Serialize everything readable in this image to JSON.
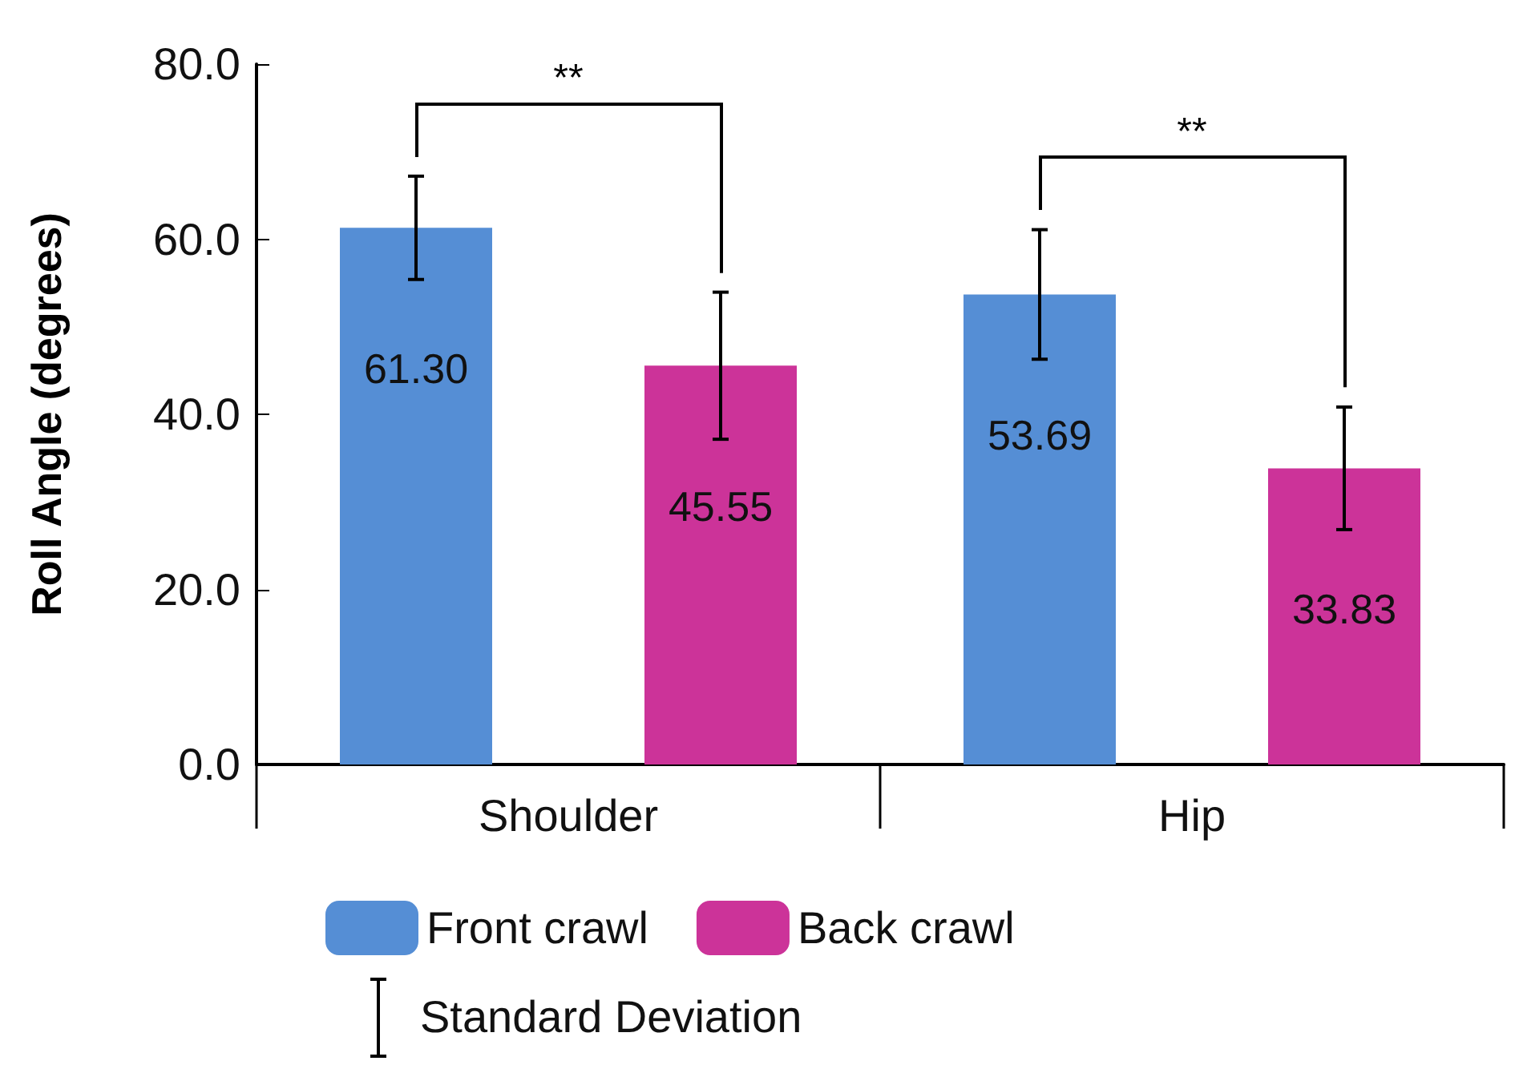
{
  "chart_data": {
    "type": "bar",
    "ylabel": "Roll Angle (degrees)",
    "categories": [
      "Shoulder",
      "Hip"
    ],
    "series": [
      {
        "name": "Front crawl",
        "color": "#558ed5",
        "values": [
          61.3,
          53.69
        ],
        "value_labels": [
          "61.30",
          "53.69"
        ],
        "errors": [
          5.9,
          7.4
        ]
      },
      {
        "name": "Back crawl",
        "color": "#cc3399",
        "values": [
          45.55,
          33.83
        ],
        "value_labels": [
          "45.55",
          "33.83"
        ],
        "errors": [
          8.4,
          7.0
        ]
      }
    ],
    "ylim": [
      0,
      80
    ],
    "yticks": [
      {
        "value": 0,
        "label": "0.0"
      },
      {
        "value": 20,
        "label": "20.0"
      },
      {
        "value": 40,
        "label": "40.0"
      },
      {
        "value": 60,
        "label": "60.0"
      },
      {
        "value": 80,
        "label": "80.0"
      }
    ],
    "grid": false,
    "legend": "bottom",
    "annotations": [
      "**",
      "**",
      "Standard Deviation"
    ]
  }
}
